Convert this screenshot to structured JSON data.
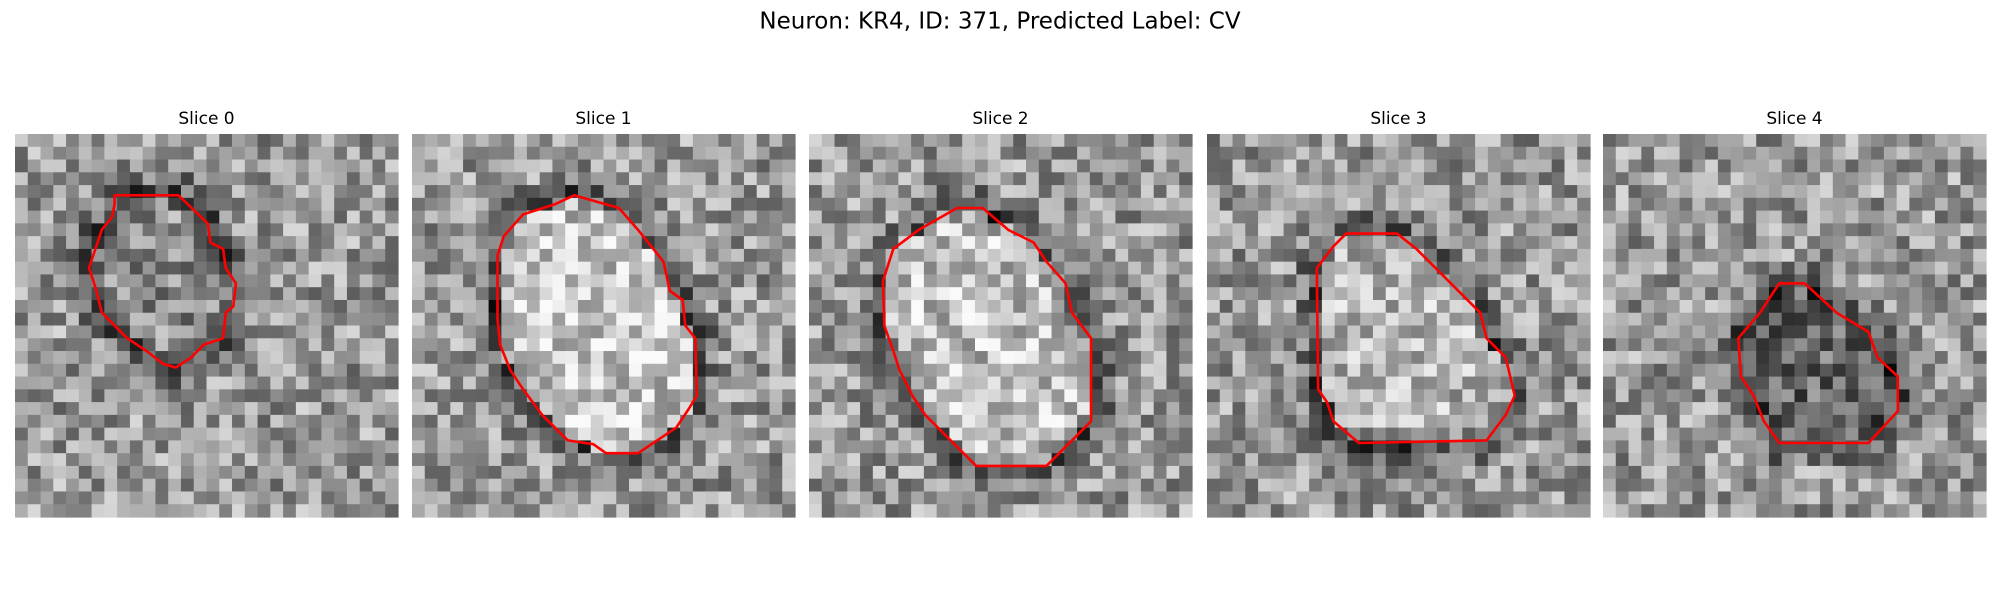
{
  "header": {
    "title": "Neuron: KR4, ID: 371, Predicted Label: CV"
  },
  "panels": [
    {
      "title": "Slice 0"
    },
    {
      "title": "Slice 1"
    },
    {
      "title": "Slice 2"
    },
    {
      "title": "Slice 3"
    },
    {
      "title": "Slice 4"
    }
  ]
}
